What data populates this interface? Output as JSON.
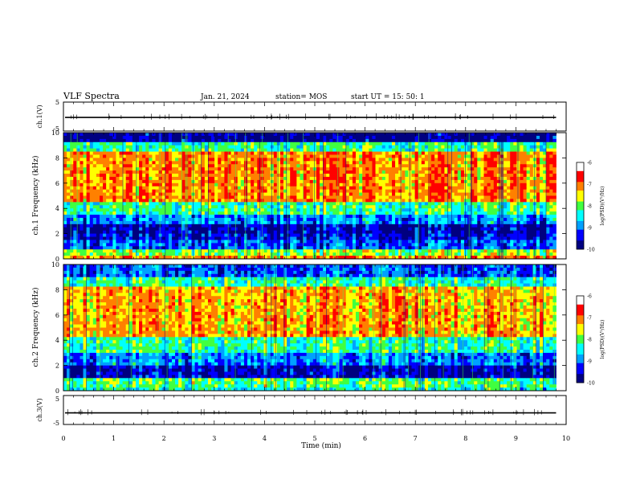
{
  "header": {
    "title": "VLF Spectra",
    "date": "Jan. 21, 2024",
    "station": "station= MOS",
    "start": "start  UT =   15: 50: 1"
  },
  "chart_data": [
    {
      "type": "line",
      "panel": "ch1-waveform",
      "ylabel": "ch.1(V)",
      "ylim": [
        -5,
        5
      ],
      "yticks": [
        "5",
        "-5"
      ],
      "xlim": [
        0,
        10
      ],
      "series": [
        {
          "values_desc": "flat near -0.3 V with small spikes",
          "level": -0.3
        }
      ]
    },
    {
      "type": "heatmap",
      "panel": "ch1-spectrogram",
      "ylabel": "ch.1 Frequency (kHz)",
      "ylim": [
        0,
        10
      ],
      "yticks": [
        "0",
        "2",
        "4",
        "6",
        "8",
        "10"
      ],
      "xlim": [
        0,
        9.8
      ],
      "colorbar": {
        "label": "log(PSD)(V²/Hz)",
        "range": [
          -10,
          -6
        ],
        "ticks": [
          "-6",
          "-7",
          "-8",
          "-9",
          "-10"
        ]
      },
      "bands": [
        {
          "from": 0.0,
          "to": 0.3,
          "level": -6.8
        },
        {
          "from": 0.3,
          "to": 0.8,
          "level": -7.6
        },
        {
          "from": 0.8,
          "to": 1.5,
          "level": -9.0
        },
        {
          "from": 1.5,
          "to": 2.0,
          "level": -9.4
        },
        {
          "from": 2.0,
          "to": 2.8,
          "level": -9.6
        },
        {
          "from": 2.8,
          "to": 3.6,
          "level": -8.8
        },
        {
          "from": 3.6,
          "to": 4.6,
          "level": -8.0
        },
        {
          "from": 4.6,
          "to": 8.6,
          "level": -6.8
        },
        {
          "from": 8.6,
          "to": 9.2,
          "level": -8.0
        },
        {
          "from": 9.2,
          "to": 10.0,
          "level": -9.8
        }
      ]
    },
    {
      "type": "heatmap",
      "panel": "ch2-spectrogram",
      "ylabel": "ch.2 Frequency (kHz)",
      "ylim": [
        0,
        10
      ],
      "yticks": [
        "0",
        "2",
        "4",
        "6",
        "8",
        "10"
      ],
      "xlim": [
        0,
        9.8
      ],
      "colorbar": {
        "label": "log(PSD)(V²/Hz)",
        "range": [
          -10,
          -6
        ],
        "ticks": [
          "-6",
          "-7",
          "-8",
          "-9",
          "-10"
        ]
      },
      "bands": [
        {
          "from": 0.0,
          "to": 0.3,
          "level": -8.2
        },
        {
          "from": 0.3,
          "to": 1.0,
          "level": -7.8
        },
        {
          "from": 1.0,
          "to": 2.0,
          "level": -9.5
        },
        {
          "from": 2.0,
          "to": 3.0,
          "level": -8.8
        },
        {
          "from": 3.0,
          "to": 4.2,
          "level": -8.0
        },
        {
          "from": 4.2,
          "to": 8.2,
          "level": -6.9
        },
        {
          "from": 8.2,
          "to": 9.0,
          "level": -8.0
        },
        {
          "from": 9.0,
          "to": 10.0,
          "level": -9.0
        }
      ]
    },
    {
      "type": "line",
      "panel": "ch3-waveform",
      "ylabel": "ch.3(V)",
      "ylim": [
        -5,
        5
      ],
      "yticks": [
        "5",
        "-5"
      ],
      "xlim": [
        0,
        10
      ],
      "series": [
        {
          "values_desc": "flat near -1 V",
          "level": -1.0
        }
      ]
    }
  ],
  "xaxis": {
    "label": "Time  (min)",
    "range": [
      0,
      10
    ],
    "ticks": [
      "0",
      "1",
      "2",
      "3",
      "4",
      "5",
      "6",
      "7",
      "8",
      "9",
      "10"
    ]
  },
  "colors": {
    "colormap": [
      "#000080",
      "#0000ff",
      "#00a0ff",
      "#00ffff",
      "#40ff40",
      "#ffff00",
      "#ff8000",
      "#ff0000",
      "#ffffff"
    ]
  }
}
